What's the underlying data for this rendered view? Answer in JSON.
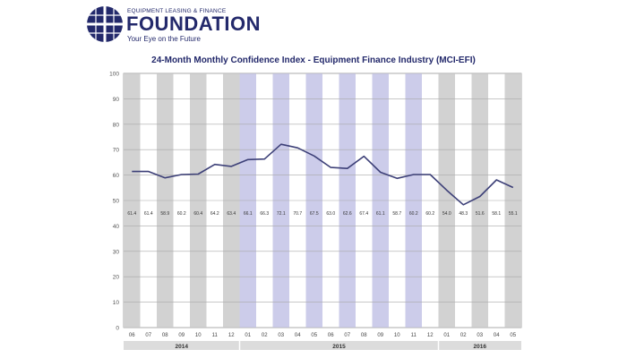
{
  "logo": {
    "small_text": "EQUIPMENT LEASING & FINANCE",
    "name": "FOUNDATION",
    "tagline": "Your Eye on the Future"
  },
  "colors": {
    "brand": "#23296b",
    "line": "#3d4078",
    "band_gray": "#d2d2d2",
    "band_blue": "#ccccea"
  },
  "chart_data": {
    "type": "line",
    "title": "24-Month Monthly Confidence Index - Equipment Finance Industry (MCI-EFI)",
    "xlabel": "",
    "ylabel": "",
    "ylim": [
      0,
      100
    ],
    "yticks": [
      "0",
      "10",
      "20",
      "30",
      "40",
      "50",
      "60",
      "70",
      "80",
      "90",
      "100"
    ],
    "grid": true,
    "categories": [
      "06",
      "07",
      "08",
      "09",
      "10",
      "11",
      "12",
      "01",
      "02",
      "03",
      "04",
      "05",
      "06",
      "07",
      "08",
      "09",
      "10",
      "11",
      "12",
      "01",
      "02",
      "03",
      "04",
      "05"
    ],
    "years": [
      {
        "label": "2014",
        "span": 7
      },
      {
        "label": "2015",
        "span": 12
      },
      {
        "label": "2016",
        "span": 5
      }
    ],
    "values": [
      61.4,
      61.4,
      58.9,
      60.2,
      60.4,
      64.2,
      63.4,
      66.1,
      66.3,
      72.1,
      70.7,
      67.5,
      63.0,
      62.6,
      67.4,
      61.1,
      58.7,
      60.2,
      60.2,
      54.0,
      48.3,
      51.6,
      58.1,
      55.1
    ],
    "value_labels": [
      "61.4",
      "61.4",
      "58.9",
      "60.2",
      "60.4",
      "64.2",
      "63.4",
      "66.1",
      "66.3",
      "72.1",
      "70.7",
      "67.5",
      "63.0",
      "62.6",
      "67.4",
      "61.1",
      "58.7",
      "60.2",
      "60.2",
      "54.0",
      "48.3",
      "51.6",
      "58.1",
      "55.1"
    ],
    "band_pattern": [
      "gray",
      "white",
      "gray",
      "white",
      "gray",
      "white",
      "gray",
      "blue",
      "white",
      "blue",
      "white",
      "blue",
      "white",
      "blue",
      "white",
      "blue",
      "white",
      "blue",
      "white",
      "gray",
      "white",
      "gray",
      "white",
      "gray"
    ]
  }
}
